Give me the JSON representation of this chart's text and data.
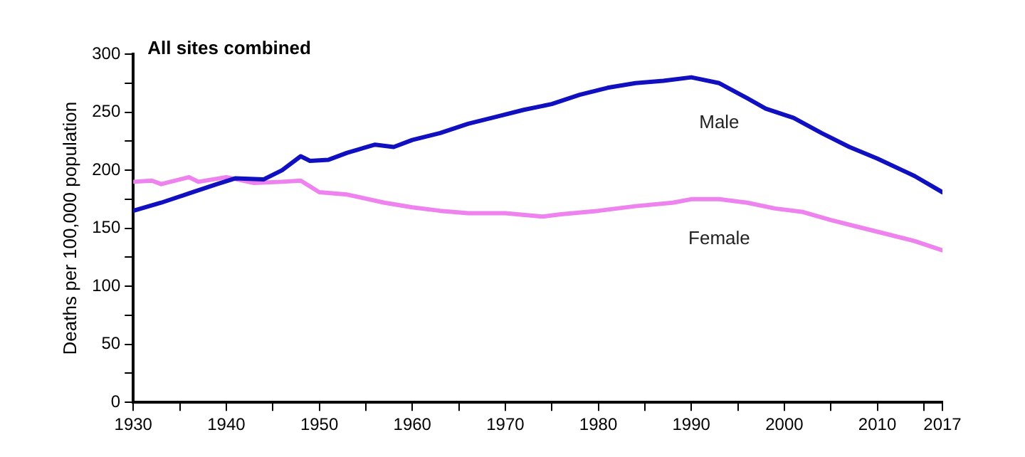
{
  "chart_data": {
    "type": "line",
    "title": "All sites combined",
    "ylabel": "Deaths per 100,000 population",
    "xlim": [
      1930,
      2017
    ],
    "xticks": [
      1930,
      {
        "value": 1935,
        "label": null
      },
      1940,
      {
        "value": 1945,
        "label": null
      },
      1950,
      {
        "value": 1955,
        "label": null
      },
      1960,
      {
        "value": 1965,
        "label": null
      },
      1970,
      {
        "value": 1975,
        "label": null
      },
      1980,
      {
        "value": 1985,
        "label": null
      },
      1990,
      {
        "value": 1995,
        "label": null
      },
      2000,
      {
        "value": 2005,
        "label": null
      },
      2010,
      {
        "value": 2015,
        "label": null
      },
      2017
    ],
    "ylim": [
      0,
      300
    ],
    "yticks": [
      0,
      {
        "value": 25,
        "label": null
      },
      50,
      {
        "value": 75,
        "label": null
      },
      100,
      {
        "value": 125,
        "label": null
      },
      150,
      {
        "value": 175,
        "label": null
      },
      200,
      {
        "value": 225,
        "label": null
      },
      250,
      {
        "value": 275,
        "label": null
      },
      300
    ],
    "grid": false,
    "legend": false,
    "marker": "none",
    "line_style": "solid",
    "series": [
      {
        "name": "Male",
        "color": "#1010c0",
        "x": [
          1930,
          1933,
          1936,
          1939,
          1941,
          1944,
          1946,
          1948,
          1949,
          1951,
          1953,
          1956,
          1958,
          1960,
          1963,
          1966,
          1969,
          1972,
          1975,
          1978,
          1981,
          1984,
          1987,
          1990,
          1993,
          1996,
          1998,
          2001,
          2004,
          2007,
          2010,
          2014,
          2017
        ],
        "values": [
          165,
          172,
          180,
          188,
          193,
          192,
          200,
          212,
          208,
          209,
          215,
          222,
          220,
          226,
          232,
          240,
          246,
          252,
          257,
          265,
          271,
          275,
          277,
          280,
          275,
          262,
          253,
          245,
          232,
          220,
          210,
          195,
          181
        ]
      },
      {
        "name": "Female",
        "color": "#ee82ee",
        "x": [
          1930,
          1932,
          1933,
          1936,
          1937,
          1940,
          1943,
          1946,
          1948,
          1950,
          1953,
          1957,
          1960,
          1963,
          1966,
          1970,
          1974,
          1976,
          1980,
          1984,
          1988,
          1990,
          1993,
          1996,
          1999,
          2002,
          2005,
          2008,
          2011,
          2014,
          2017
        ],
        "values": [
          190,
          191,
          188,
          194,
          190,
          194,
          189,
          190,
          191,
          181,
          179,
          172,
          168,
          165,
          163,
          163,
          160,
          162,
          165,
          169,
          172,
          175,
          175,
          172,
          167,
          164,
          157,
          151,
          145,
          139,
          131
        ]
      }
    ]
  }
}
